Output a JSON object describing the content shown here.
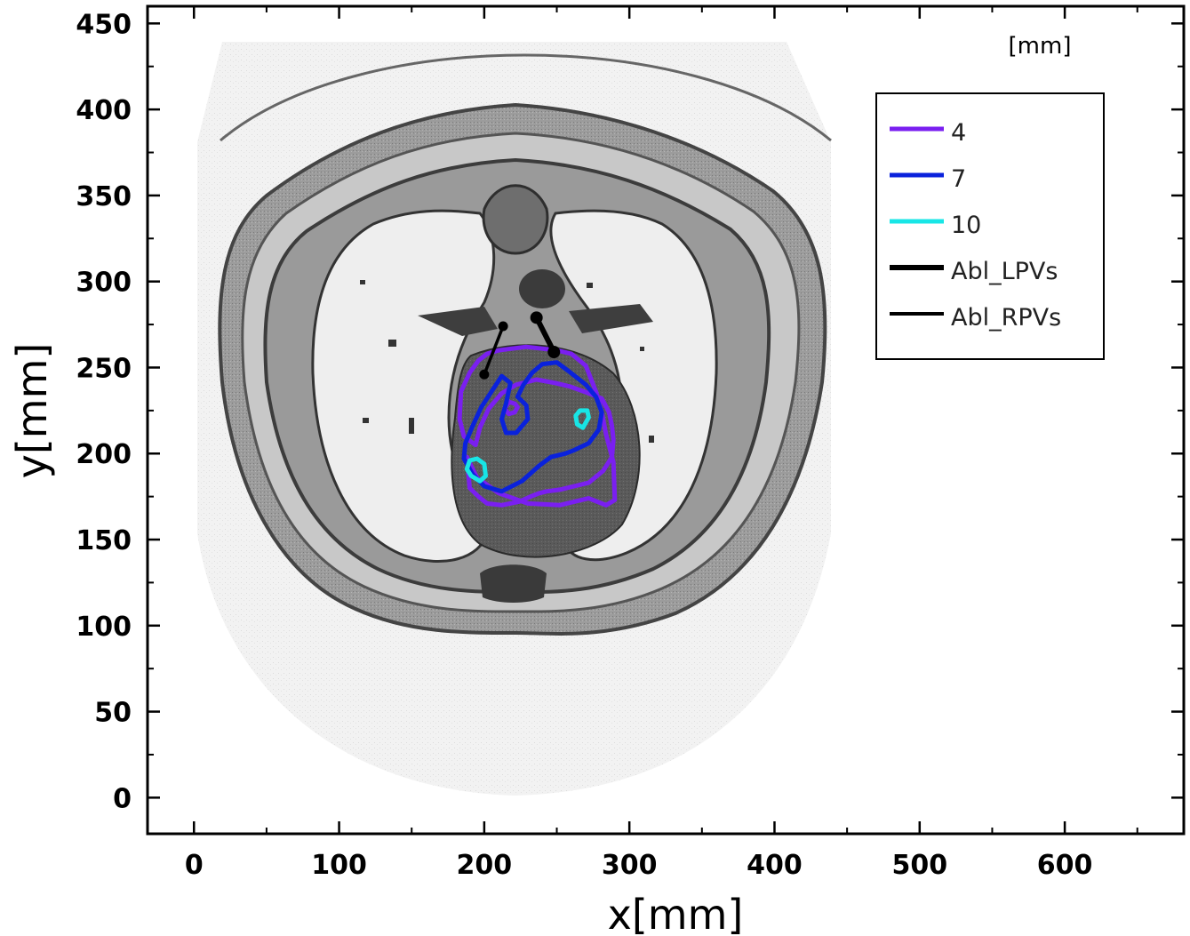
{
  "chart_data": {
    "type": "line",
    "xlabel": "x[mm]",
    "ylabel": "y[mm]",
    "unit_label": "[mm]",
    "xlim": [
      -32,
      682
    ],
    "ylim": [
      -21,
      460
    ],
    "x_ticks": [
      0,
      100,
      200,
      300,
      400,
      500,
      600
    ],
    "y_ticks": [
      0,
      50,
      100,
      150,
      200,
      250,
      300,
      350,
      400,
      450
    ],
    "x_tick_labels": [
      "0",
      "100",
      "200",
      "300",
      "400",
      "500",
      "600"
    ],
    "y_tick_labels": [
      "0",
      "50",
      "100",
      "150",
      "200",
      "250",
      "300",
      "350",
      "400",
      "450"
    ],
    "background": "grayscale axial CT slice of thorax",
    "legend_position": "top-right",
    "series": [
      {
        "name": "4",
        "color": "#7a1ff0",
        "kind": "contour",
        "x": [
          188,
          195,
          210,
          230,
          252,
          272,
          284,
          290,
          289,
          284,
          281,
          277,
          270,
          260,
          250,
          240,
          229,
          219,
          210,
          202,
          196,
          190,
          184,
          183,
          186,
          194,
          197,
          203,
          212,
          222,
          236,
          249,
          259,
          269,
          281,
          286,
          288,
          289,
          288,
          282,
          272,
          262,
          252,
          243,
          238,
          232,
          224,
          212,
          202,
          196,
          190,
          188
        ],
        "y": [
          198,
          186,
          177,
          171,
          170,
          174,
          170,
          173,
          195,
          211,
          224,
          236,
          251,
          258,
          260,
          261,
          262,
          261,
          260,
          258,
          254,
          247,
          236,
          220,
          210,
          205,
          215,
          226,
          235,
          240,
          243,
          241,
          239,
          236,
          232,
          224,
          216,
          208,
          198,
          190,
          183,
          181,
          179,
          178,
          177,
          175,
          172,
          170,
          171,
          175,
          180,
          198
        ]
      },
      {
        "name": "4",
        "color": "#7a1ff0",
        "kind": "contour-loop",
        "x": [
          214,
          217,
          221,
          223,
          221,
          217,
          214
        ],
        "y": [
          226,
          223,
          224,
          227,
          229,
          230,
          226
        ]
      },
      {
        "name": "7",
        "color": "#0a22dc",
        "kind": "contour",
        "x": [
          186,
          192,
          200,
          212,
          226,
          238,
          246,
          256,
          262,
          272,
          279,
          281,
          277,
          270,
          258,
          250,
          240,
          233,
          227,
          223,
          229,
          230,
          222,
          215,
          212,
          215,
          218,
          212,
          205,
          198,
          192,
          187,
          186
        ],
        "y": [
          197,
          188,
          181,
          178,
          184,
          193,
          198,
          200,
          202,
          206,
          214,
          224,
          233,
          240,
          248,
          253,
          252,
          247,
          240,
          233,
          228,
          220,
          212,
          212,
          220,
          229,
          241,
          245,
          236,
          227,
          216,
          206,
          197
        ]
      },
      {
        "name": "10",
        "color": "#18e6e6",
        "kind": "contour-loop",
        "x": [
          191,
          197,
          201,
          200,
          195,
          190,
          188,
          191
        ],
        "y": [
          187,
          184,
          187,
          194,
          197,
          196,
          191,
          187
        ]
      },
      {
        "name": "10",
        "color": "#18e6e6",
        "kind": "contour-loop",
        "x": [
          264,
          268,
          272,
          271,
          266,
          263,
          264
        ],
        "y": [
          217,
          215,
          221,
          225,
          225,
          222,
          217
        ]
      },
      {
        "name": "Abl_LPVs",
        "color": "#000000",
        "kind": "ablation",
        "width": 6,
        "x": [
          236,
          248
        ],
        "y": [
          279,
          259
        ]
      },
      {
        "name": "Abl_RPVs",
        "color": "#000000",
        "kind": "ablation",
        "width": 3.5,
        "x": [
          200,
          213
        ],
        "y": [
          246,
          274
        ]
      }
    ],
    "legend": [
      {
        "label": "4",
        "color": "#7a1ff0",
        "width": 5
      },
      {
        "label": "7",
        "color": "#0a22dc",
        "width": 5
      },
      {
        "label": "10",
        "color": "#18e6e6",
        "width": 5
      },
      {
        "label": "Abl_LPVs",
        "color": "#000000",
        "width": 6
      },
      {
        "label": "Abl_RPVs",
        "color": "#000000",
        "width": 4
      }
    ]
  }
}
